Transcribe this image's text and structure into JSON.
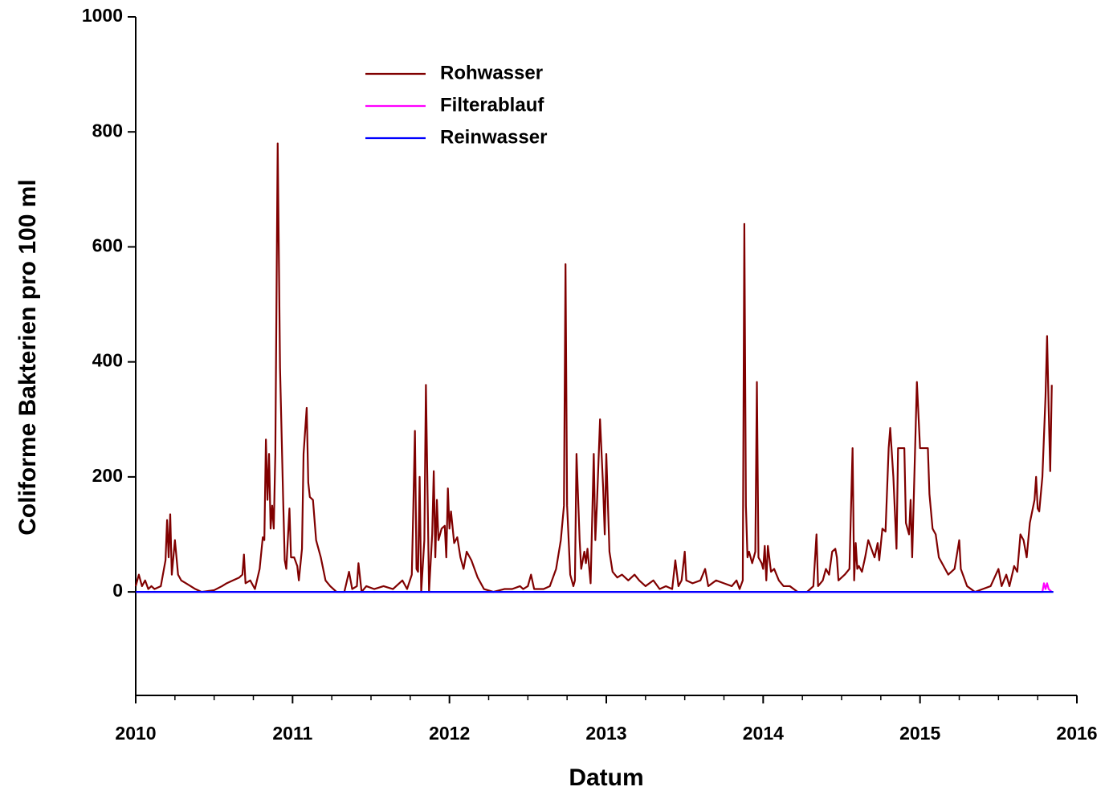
{
  "chart_data": {
    "type": "line",
    "xlabel": "Datum",
    "ylabel": "Coliforme Bakterien pro 100 ml",
    "xlim": [
      2010,
      2016
    ],
    "xticks": [
      2010,
      2011,
      2012,
      2013,
      2014,
      2015,
      2016
    ],
    "xticks_minor": [
      2010.25,
      2010.5,
      2010.75,
      2011.25,
      2011.5,
      2011.75,
      2012.25,
      2012.5,
      2012.75,
      2013.25,
      2013.5,
      2013.75,
      2014.25,
      2014.5,
      2014.75,
      2015.25,
      2015.5,
      2015.75
    ],
    "ylim": [
      -180,
      1000
    ],
    "yticks": [
      0,
      200,
      400,
      600,
      800,
      1000
    ],
    "legend": "upper left",
    "series": [
      {
        "name": "Rohwasser",
        "color": "#800000",
        "x": [
          2010.0,
          2010.02,
          2010.04,
          2010.06,
          2010.08,
          2010.1,
          2010.12,
          2010.16,
          2010.19,
          2010.2,
          2010.21,
          2010.22,
          2010.23,
          2010.25,
          2010.27,
          2010.29,
          2010.32,
          2010.35,
          2010.38,
          2010.42,
          2010.5,
          2010.55,
          2010.58,
          2010.62,
          2010.66,
          2010.68,
          2010.69,
          2010.7,
          2010.73,
          2010.76,
          2010.79,
          2010.81,
          2010.82,
          2010.83,
          2010.84,
          2010.85,
          2010.86,
          2010.87,
          2010.88,
          2010.89,
          2010.905,
          2010.92,
          2010.94,
          2010.95,
          2010.96,
          2010.98,
          2010.99,
          2011.01,
          2011.03,
          2011.04,
          2011.06,
          2011.07,
          2011.09,
          2011.1,
          2011.11,
          2011.13,
          2011.15,
          2011.18,
          2011.21,
          2011.24,
          2011.28,
          2011.33,
          2011.36,
          2011.38,
          2011.41,
          2011.42,
          2011.44,
          2011.47,
          2011.52,
          2011.58,
          2011.64,
          2011.7,
          2011.73,
          2011.76,
          2011.77,
          2011.78,
          2011.79,
          2011.8,
          2011.81,
          2011.82,
          2011.84,
          2011.85,
          2011.87,
          2011.89,
          2011.9,
          2011.91,
          2011.92,
          2011.93,
          2011.95,
          2011.97,
          2011.98,
          2011.99,
          2012.0,
          2012.01,
          2012.03,
          2012.05,
          2012.07,
          2012.09,
          2012.11,
          2012.14,
          2012.18,
          2012.22,
          2012.28,
          2012.35,
          2012.4,
          2012.45,
          2012.47,
          2012.5,
          2012.52,
          2012.54,
          2012.6,
          2012.64,
          2012.68,
          2012.71,
          2012.73,
          2012.74,
          2012.75,
          2012.77,
          2012.79,
          2012.8,
          2012.81,
          2012.83,
          2012.84,
          2012.85,
          2012.86,
          2012.87,
          2012.88,
          2012.9,
          2012.92,
          2012.93,
          2012.94,
          2012.96,
          2012.98,
          2012.99,
          2013.0,
          2013.02,
          2013.04,
          2013.07,
          2013.1,
          2013.14,
          2013.18,
          2013.21,
          2013.25,
          2013.3,
          2013.34,
          2013.38,
          2013.42,
          2013.44,
          2013.46,
          2013.48,
          2013.5,
          2013.51,
          2013.55,
          2013.6,
          2013.63,
          2013.65,
          2013.7,
          2013.75,
          2013.8,
          2013.83,
          2013.85,
          2013.87,
          2013.88,
          2013.89,
          2013.9,
          2013.91,
          2013.93,
          2013.95,
          2013.96,
          2013.97,
          2013.99,
          2014.0,
          2014.01,
          2014.02,
          2014.03,
          2014.05,
          2014.07,
          2014.1,
          2014.13,
          2014.17,
          2014.22,
          2014.28,
          2014.32,
          2014.34,
          2014.35,
          2014.38,
          2014.4,
          2014.42,
          2014.44,
          2014.46,
          2014.47,
          2014.48,
          2014.52,
          2014.55,
          2014.57,
          2014.58,
          2014.59,
          2014.6,
          2014.61,
          2014.63,
          2014.65,
          2014.67,
          2014.69,
          2014.71,
          2014.73,
          2014.74,
          2014.76,
          2014.78,
          2014.8,
          2014.81,
          2014.83,
          2014.85,
          2014.86,
          2014.9,
          2014.91,
          2014.93,
          2014.94,
          2014.95,
          2014.98,
          2015.0,
          2015.05,
          2015.06,
          2015.08,
          2015.1,
          2015.12,
          2015.15,
          2015.18,
          2015.22,
          2015.25,
          2015.26,
          2015.3,
          2015.35,
          2015.4,
          2015.45,
          2015.5,
          2015.52,
          2015.55,
          2015.57,
          2015.6,
          2015.62,
          2015.64,
          2015.66,
          2015.68,
          2015.7,
          2015.73,
          2015.74,
          2015.75,
          2015.76,
          2015.78,
          2015.8,
          2015.81,
          2015.82,
          2015.83,
          2015.84
        ],
        "values": [
          10,
          30,
          10,
          20,
          5,
          10,
          5,
          10,
          55,
          125,
          60,
          135,
          30,
          90,
          30,
          20,
          15,
          10,
          5,
          0,
          3,
          10,
          15,
          20,
          25,
          30,
          65,
          15,
          20,
          5,
          40,
          95,
          90,
          265,
          160,
          240,
          110,
          150,
          110,
          240,
          780,
          390,
          160,
          55,
          40,
          145,
          60,
          60,
          45,
          20,
          75,
          240,
          320,
          190,
          165,
          160,
          90,
          60,
          20,
          10,
          0,
          0,
          35,
          5,
          10,
          50,
          0,
          10,
          5,
          10,
          5,
          20,
          5,
          30,
          150,
          280,
          40,
          35,
          200,
          0,
          90,
          360,
          0,
          100,
          210,
          60,
          160,
          90,
          110,
          115,
          60,
          180,
          110,
          140,
          85,
          95,
          60,
          40,
          70,
          55,
          25,
          5,
          0,
          5,
          5,
          10,
          5,
          10,
          30,
          5,
          5,
          10,
          40,
          90,
          150,
          570,
          150,
          30,
          10,
          20,
          240,
          90,
          40,
          55,
          70,
          50,
          75,
          15,
          240,
          90,
          150,
          300,
          180,
          100,
          240,
          70,
          35,
          25,
          30,
          20,
          30,
          20,
          10,
          20,
          5,
          10,
          5,
          55,
          10,
          20,
          70,
          20,
          15,
          20,
          40,
          10,
          20,
          15,
          10,
          20,
          5,
          20,
          640,
          150,
          60,
          70,
          50,
          70,
          365,
          60,
          50,
          40,
          80,
          20,
          80,
          35,
          40,
          20,
          10,
          10,
          0,
          0,
          10,
          100,
          10,
          20,
          40,
          30,
          70,
          75,
          60,
          20,
          30,
          40,
          250,
          20,
          85,
          40,
          45,
          35,
          60,
          90,
          75,
          60,
          85,
          55,
          110,
          105,
          250,
          285,
          200,
          75,
          250,
          250,
          120,
          100,
          160,
          60,
          365,
          250,
          250,
          170,
          110,
          100,
          60,
          45,
          30,
          40,
          90,
          40,
          10,
          0,
          5,
          10,
          40,
          10,
          30,
          10,
          45,
          35,
          100,
          90,
          60,
          120,
          160,
          200,
          145,
          140,
          200,
          340,
          445,
          320,
          210,
          360
        ]
      },
      {
        "name": "Filterablauf",
        "color": "#ff00ff",
        "x": [
          2010,
          2015.78,
          2015.79,
          2015.8,
          2015.81,
          2015.82,
          2015.84
        ],
        "values": [
          0,
          0,
          15,
          5,
          15,
          5,
          0
        ]
      },
      {
        "name": "Reinwasser",
        "color": "#0000ff",
        "x": [
          2010,
          2015.85
        ],
        "values": [
          0,
          0
        ]
      }
    ]
  }
}
